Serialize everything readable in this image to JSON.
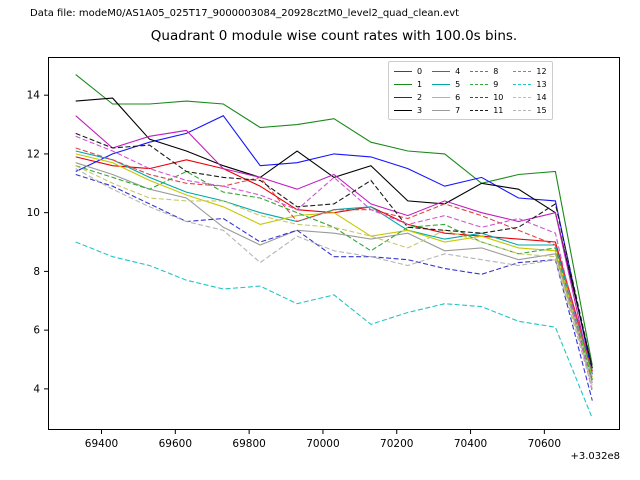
{
  "header": {
    "datafile_label": "Data file: modeM0/AS1A05_025T17_9000003084_20928cztM0_level2_quad_clean.evt"
  },
  "chart_data": {
    "type": "line",
    "title": "Quadrant 0 module wise count rates with 100.0s bins.",
    "xlabel": "",
    "ylabel": "",
    "grid": false,
    "legend_position": "upper right",
    "legend_columns": 4,
    "x_offset_label": "+3.032e8",
    "xlim": [
      69255,
      70805
    ],
    "ylim": [
      2.6,
      15.3
    ],
    "xticks": [
      69400,
      69600,
      69800,
      70000,
      70200,
      70400,
      70600
    ],
    "xtick_labels": [
      "69400",
      "69600",
      "69800",
      "70000",
      "70200",
      "70400",
      "70600"
    ],
    "yticks": [
      4,
      6,
      8,
      10,
      12,
      14
    ],
    "ytick_labels": [
      "4",
      "6",
      "8",
      "10",
      "12",
      "14"
    ],
    "x": [
      69330,
      69430,
      69530,
      69630,
      69730,
      69830,
      69930,
      70030,
      70130,
      70230,
      70330,
      70430,
      70530,
      70630,
      70730
    ],
    "series": [
      {
        "name": "0",
        "color": "#e8000b",
        "style": "solid",
        "values": [
          11.9,
          11.6,
          11.5,
          11.8,
          11.5,
          10.9,
          10.1,
          10.0,
          10.2,
          9.6,
          9.3,
          9.2,
          9.1,
          9.0,
          4.6
        ]
      },
      {
        "name": "1",
        "color": "#1a8a1a",
        "style": "solid",
        "values": [
          14.7,
          13.7,
          13.7,
          13.8,
          13.7,
          12.9,
          13.0,
          13.2,
          12.4,
          12.1,
          12.0,
          11.0,
          11.3,
          11.4,
          4.8
        ]
      },
      {
        "name": "2",
        "color": "#1515ff",
        "style": "solid",
        "values": [
          11.4,
          12.0,
          12.4,
          12.7,
          13.3,
          11.6,
          11.7,
          12.0,
          11.9,
          11.5,
          10.9,
          11.2,
          10.5,
          10.4,
          4.5
        ]
      },
      {
        "name": "3",
        "color": "#000000",
        "style": "solid",
        "values": [
          13.8,
          13.9,
          12.5,
          12.1,
          11.6,
          11.2,
          12.1,
          11.2,
          11.6,
          10.4,
          10.3,
          11.0,
          10.8,
          10.0,
          4.7
        ]
      },
      {
        "name": "4",
        "color": "#c020c0",
        "style": "solid",
        "values": [
          13.3,
          12.2,
          12.6,
          12.8,
          11.5,
          11.2,
          10.8,
          11.3,
          10.3,
          9.9,
          10.4,
          10.0,
          9.7,
          10.0,
          4.3
        ]
      },
      {
        "name": "5",
        "color": "#00a8a8",
        "style": "solid",
        "values": [
          12.1,
          11.8,
          11.2,
          10.7,
          10.4,
          10.0,
          9.7,
          10.1,
          10.2,
          9.4,
          9.1,
          9.3,
          8.9,
          8.9,
          4.5
        ]
      },
      {
        "name": "6",
        "color": "#c8c800",
        "style": "solid",
        "values": [
          12.0,
          11.7,
          11.1,
          10.6,
          10.2,
          9.6,
          9.9,
          10.0,
          9.2,
          9.4,
          9.0,
          9.2,
          8.8,
          8.7,
          4.4
        ]
      },
      {
        "name": "7",
        "color": "#9b9b9b",
        "style": "solid",
        "values": [
          11.7,
          11.3,
          10.8,
          10.5,
          9.5,
          8.9,
          9.4,
          9.3,
          9.1,
          9.3,
          8.7,
          8.8,
          8.4,
          8.6,
          4.2
        ]
      },
      {
        "name": "8",
        "color": "#e04545",
        "style": "dashed",
        "values": [
          12.2,
          11.8,
          11.3,
          11.0,
          10.9,
          11.2,
          9.7,
          10.1,
          10.1,
          9.8,
          10.3,
          9.9,
          9.4,
          8.9,
          4.6
        ]
      },
      {
        "name": "9",
        "color": "#35a835",
        "style": "dashed",
        "values": [
          11.6,
          11.2,
          10.8,
          11.4,
          10.7,
          10.5,
          10.0,
          9.5,
          8.7,
          9.5,
          9.6,
          9.0,
          8.6,
          8.8,
          4.3
        ]
      },
      {
        "name": "10",
        "color": "#3535d0",
        "style": "dashed",
        "values": [
          11.3,
          10.9,
          10.3,
          9.7,
          9.8,
          9.0,
          9.4,
          8.5,
          8.5,
          8.4,
          8.1,
          7.9,
          8.3,
          8.4,
          3.6
        ]
      },
      {
        "name": "11",
        "color": "#1a1a1a",
        "style": "dashed",
        "values": [
          12.7,
          12.2,
          12.3,
          11.4,
          11.2,
          11.1,
          10.2,
          10.3,
          11.1,
          9.5,
          9.4,
          9.3,
          9.5,
          10.3,
          4.7
        ]
      },
      {
        "name": "12",
        "color": "#d055d0",
        "style": "dashed",
        "values": [
          12.6,
          12.1,
          11.5,
          11.1,
          10.9,
          10.6,
          10.1,
          11.2,
          10.1,
          9.6,
          9.9,
          9.5,
          9.8,
          9.3,
          3.9
        ]
      },
      {
        "name": "13",
        "color": "#25c5c5",
        "style": "dashed",
        "values": [
          9.0,
          8.5,
          8.2,
          7.7,
          7.4,
          7.5,
          6.9,
          7.2,
          6.2,
          6.6,
          6.9,
          6.8,
          6.3,
          6.1,
          3.0
        ]
      },
      {
        "name": "14",
        "color": "#c8c86a",
        "style": "dashed",
        "values": [
          11.6,
          11.0,
          10.5,
          10.4,
          10.4,
          9.9,
          9.6,
          9.5,
          9.2,
          8.8,
          9.4,
          9.0,
          8.6,
          8.5,
          4.1
        ]
      },
      {
        "name": "15",
        "color": "#b5b5b5",
        "style": "dashed",
        "values": [
          11.5,
          10.8,
          10.2,
          9.7,
          9.4,
          8.3,
          9.2,
          8.7,
          8.5,
          8.2,
          8.6,
          8.4,
          8.2,
          8.4,
          4.0
        ]
      }
    ]
  }
}
